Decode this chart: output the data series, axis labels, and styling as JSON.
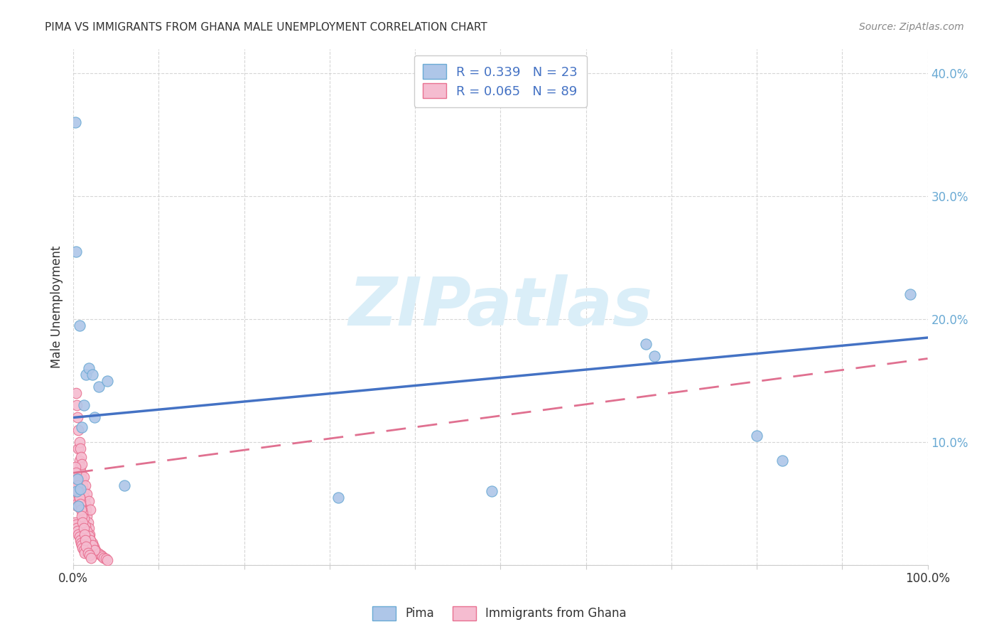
{
  "title": "PIMA VS IMMIGRANTS FROM GHANA MALE UNEMPLOYMENT CORRELATION CHART",
  "source": "Source: ZipAtlas.com",
  "ylabel": "Male Unemployment",
  "xlim": [
    0,
    1.0
  ],
  "ylim": [
    0,
    0.42
  ],
  "pima_R": "0.339",
  "pima_N": "23",
  "ghana_R": "0.065",
  "ghana_N": "89",
  "pima_color": "#aec6e8",
  "pima_edge_color": "#6aaad4",
  "ghana_color": "#f5bcd0",
  "ghana_edge_color": "#e87090",
  "trend_pima_color": "#4472c4",
  "trend_ghana_color": "#e07090",
  "watermark_color": "#daeef8",
  "watermark": "ZIPatlas",
  "grid_color": "#cccccc",
  "title_color": "#333333",
  "source_color": "#888888",
  "tick_color_y": "#6aaad4",
  "tick_color_x": "#333333",
  "pima_x": [
    0.003,
    0.004,
    0.005,
    0.006,
    0.008,
    0.01,
    0.012,
    0.015,
    0.018,
    0.022,
    0.025,
    0.03,
    0.04,
    0.06,
    0.31,
    0.49,
    0.67,
    0.68,
    0.8,
    0.83,
    0.98,
    0.002,
    0.007
  ],
  "pima_y": [
    0.255,
    0.06,
    0.07,
    0.048,
    0.062,
    0.112,
    0.13,
    0.155,
    0.16,
    0.155,
    0.12,
    0.145,
    0.15,
    0.065,
    0.055,
    0.06,
    0.18,
    0.17,
    0.105,
    0.085,
    0.22,
    0.36,
    0.195
  ],
  "ghana_x": [
    0.002,
    0.003,
    0.004,
    0.005,
    0.006,
    0.007,
    0.008,
    0.009,
    0.01,
    0.011,
    0.012,
    0.013,
    0.014,
    0.015,
    0.016,
    0.017,
    0.018,
    0.019,
    0.02,
    0.022,
    0.024,
    0.025,
    0.026,
    0.028,
    0.03,
    0.032,
    0.034,
    0.036,
    0.038,
    0.04,
    0.003,
    0.004,
    0.005,
    0.006,
    0.007,
    0.008,
    0.009,
    0.01,
    0.012,
    0.014,
    0.016,
    0.018,
    0.02,
    0.002,
    0.003,
    0.004,
    0.005,
    0.006,
    0.007,
    0.008,
    0.009,
    0.01,
    0.011,
    0.012,
    0.014,
    0.016,
    0.018,
    0.02,
    0.022,
    0.025,
    0.002,
    0.003,
    0.004,
    0.005,
    0.006,
    0.007,
    0.008,
    0.009,
    0.01,
    0.011,
    0.012,
    0.013,
    0.002,
    0.003,
    0.004,
    0.005,
    0.006,
    0.007,
    0.008,
    0.009,
    0.01,
    0.011,
    0.012,
    0.013,
    0.014,
    0.015,
    0.017,
    0.019,
    0.021
  ],
  "ghana_y": [
    0.06,
    0.055,
    0.05,
    0.048,
    0.095,
    0.085,
    0.08,
    0.075,
    0.07,
    0.065,
    0.06,
    0.055,
    0.05,
    0.045,
    0.04,
    0.035,
    0.03,
    0.025,
    0.02,
    0.018,
    0.015,
    0.013,
    0.012,
    0.01,
    0.009,
    0.008,
    0.007,
    0.006,
    0.005,
    0.004,
    0.14,
    0.13,
    0.12,
    0.11,
    0.1,
    0.095,
    0.088,
    0.082,
    0.072,
    0.065,
    0.058,
    0.052,
    0.045,
    0.07,
    0.068,
    0.065,
    0.062,
    0.058,
    0.055,
    0.052,
    0.048,
    0.045,
    0.042,
    0.038,
    0.032,
    0.028,
    0.024,
    0.02,
    0.016,
    0.012,
    0.035,
    0.033,
    0.03,
    0.028,
    0.025,
    0.023,
    0.02,
    0.018,
    0.016,
    0.014,
    0.012,
    0.01,
    0.08,
    0.075,
    0.07,
    0.065,
    0.06,
    0.055,
    0.05,
    0.045,
    0.04,
    0.035,
    0.03,
    0.025,
    0.02,
    0.015,
    0.01,
    0.008,
    0.006
  ]
}
